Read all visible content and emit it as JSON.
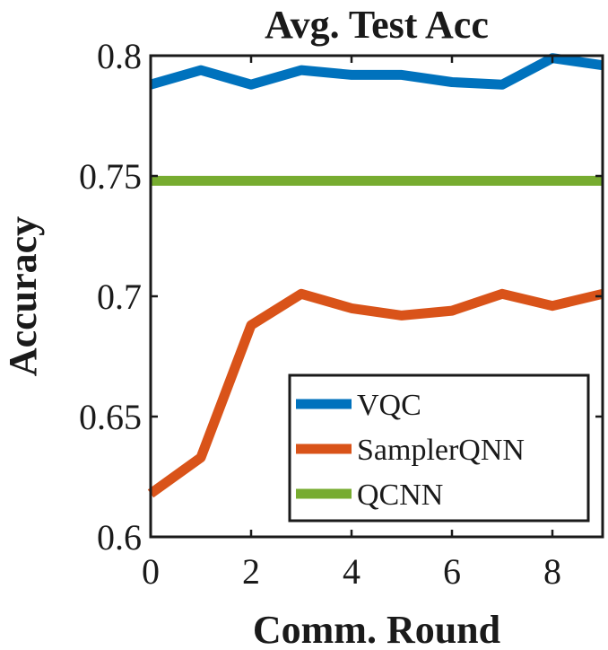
{
  "chart_data": {
    "type": "line",
    "title": "Avg. Test Acc",
    "xlabel": "Comm. Round",
    "ylabel": "Accuracy",
    "xlim": [
      0,
      9
    ],
    "ylim": [
      0.6,
      0.8
    ],
    "xticks": [
      0,
      2,
      4,
      6,
      8
    ],
    "xtick_labels": [
      "0",
      "2",
      "4",
      "6",
      "8"
    ],
    "yticks": [
      0.6,
      0.65,
      0.7,
      0.75,
      0.8
    ],
    "ytick_labels": [
      "0.6",
      "0.65",
      "0.7",
      "0.75",
      "0.8"
    ],
    "grid": false,
    "legend_position": "bottom-right",
    "x": [
      0,
      1,
      2,
      3,
      4,
      5,
      6,
      7,
      8,
      9
    ],
    "series": [
      {
        "name": "VQC",
        "color": "#0072BD",
        "values": [
          0.788,
          0.794,
          0.788,
          0.794,
          0.792,
          0.792,
          0.789,
          0.788,
          0.799,
          0.796
        ]
      },
      {
        "name": "SamplerQNN",
        "color": "#D95319",
        "values": [
          0.618,
          0.633,
          0.688,
          0.701,
          0.695,
          0.692,
          0.694,
          0.701,
          0.696,
          0.701
        ]
      },
      {
        "name": "QCNN",
        "color": "#77AC30",
        "values": [
          0.748,
          0.748,
          0.748,
          0.748,
          0.748,
          0.748,
          0.748,
          0.748,
          0.748,
          0.748
        ]
      }
    ]
  }
}
